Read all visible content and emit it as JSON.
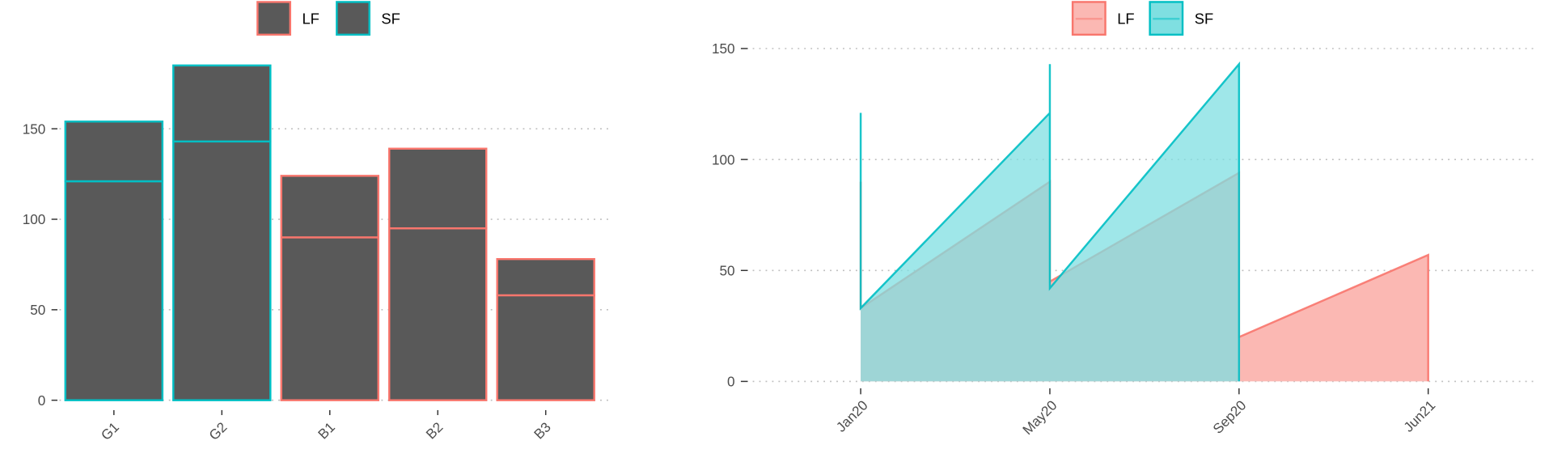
{
  "colors": {
    "LF": "#F8766D",
    "SF": "#00BFC4",
    "bar_fill": "#595959",
    "LF_fill": "#FBB8B3",
    "SF_fill": "#7FDFE1",
    "overlap_fill": "#80BCBA"
  },
  "chart_data": [
    {
      "type": "bar",
      "stacked": true,
      "legend": {
        "position": "top",
        "entries": [
          "LF",
          "SF"
        ]
      },
      "categories": [
        "G1",
        "G2",
        "B1",
        "B2",
        "B3"
      ],
      "group": [
        "SF",
        "SF",
        "LF",
        "LF",
        "LF"
      ],
      "segments": [
        [
          121,
          33
        ],
        [
          143,
          42
        ],
        [
          90,
          34
        ],
        [
          95,
          44
        ],
        [
          58,
          20
        ]
      ],
      "ylim": [
        0,
        190
      ],
      "yticks": [
        0,
        50,
        100,
        150
      ],
      "grid": "horizontal dotted",
      "xlabel": "",
      "ylabel": ""
    },
    {
      "type": "area",
      "legend": {
        "position": "top",
        "entries": [
          "LF",
          "SF"
        ]
      },
      "x": [
        "Jan20",
        "May20",
        "Sep20",
        "Jun21"
      ],
      "series": [
        {
          "name": "LF",
          "points": [
            [
              "Jan20",
              90
            ],
            [
              "Jan20",
              33
            ],
            [
              "May20",
              90
            ],
            [
              "May20",
              45
            ],
            [
              "Sep20",
              94
            ],
            [
              "Sep20",
              42
            ],
            [
              "Sep20",
              20
            ],
            [
              "Jun21",
              57
            ],
            [
              "Jun21",
              20
            ],
            [
              "Jun21",
              0
            ]
          ]
        },
        {
          "name": "SF",
          "points": [
            [
              "Jan20",
              121
            ],
            [
              "Jan20",
              33
            ],
            [
              "May20",
              121
            ],
            [
              "May20",
              143
            ],
            [
              "May20",
              42
            ],
            [
              "Sep20",
              143
            ],
            [
              "Sep20",
              0
            ]
          ]
        }
      ],
      "ylim": [
        0,
        150
      ],
      "yticks": [
        0,
        50,
        100,
        150
      ],
      "grid": "horizontal dotted",
      "xlabel": "",
      "ylabel": ""
    }
  ]
}
